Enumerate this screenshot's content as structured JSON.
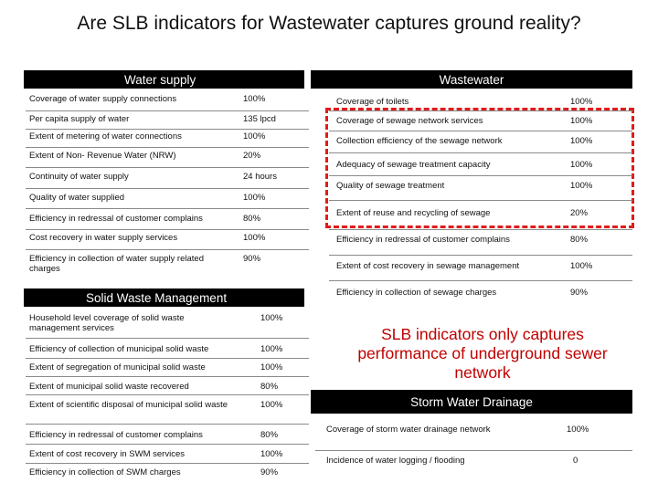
{
  "title": "Are SLB indicators for Wastewater captures ground reality?",
  "water_supply": {
    "header": "Water supply",
    "rows": [
      {
        "label": "Coverage of water supply connections",
        "value": "100%"
      },
      {
        "label": "Per capita supply of water",
        "value": "135 lpcd"
      },
      {
        "label": "Extent of metering of water connections",
        "value": "100%"
      },
      {
        "label": "Extent of Non- Revenue Water (NRW)",
        "value": "20%"
      },
      {
        "label": "Continuity of water supply",
        "value": "24 hours"
      },
      {
        "label": "Quality of water supplied",
        "value": "100%"
      },
      {
        "label": "Efficiency in redressal of customer complains",
        "value": "80%"
      },
      {
        "label": "Cost recovery in water supply services",
        "value": "100%"
      },
      {
        "label": "Efficiency in collection of water supply related charges",
        "value": "90%"
      }
    ]
  },
  "wastewater": {
    "header": "Wastewater",
    "rows": [
      {
        "label": "Coverage of toilets",
        "value": "100%"
      },
      {
        "label": "Coverage of sewage network services",
        "value": "100%"
      },
      {
        "label": "Collection efficiency of the sewage network",
        "value": "100%"
      },
      {
        "label": "Adequacy of sewage treatment capacity",
        "value": "100%"
      },
      {
        "label": "Quality of sewage treatment",
        "value": "100%"
      },
      {
        "label": "Extent of reuse and recycling of sewage",
        "value": "20%"
      },
      {
        "label": "Efficiency in redressal of customer complains",
        "value": "80%"
      },
      {
        "label": "Extent of cost recovery in sewage management",
        "value": "100%"
      },
      {
        "label": "Efficiency in collection of sewage charges",
        "value": "90%"
      }
    ]
  },
  "solid_waste": {
    "header": "Solid Waste Management",
    "rows": [
      {
        "label": "Household level coverage of solid waste management services",
        "value": "100%"
      },
      {
        "label": "Efficiency of collection of municipal solid waste",
        "value": "100%"
      },
      {
        "label": "Extent of segregation of municipal solid waste",
        "value": "100%"
      },
      {
        "label": "Extent of municipal solid waste recovered",
        "value": "80%"
      },
      {
        "label": "Extent of scientific disposal of municipal solid waste",
        "value": "100%"
      },
      {
        "label": "Efficiency in redressal of customer complains",
        "value": "80%"
      },
      {
        "label": "Extent of cost recovery in SWM services",
        "value": "100%"
      },
      {
        "label": "Efficiency in collection of SWM charges",
        "value": "90%"
      }
    ]
  },
  "note": "SLB indicators only captures performance of underground sewer network",
  "storm_water": {
    "header": "Storm Water Drainage",
    "rows": [
      {
        "label": "Coverage of storm water drainage network",
        "value": "100%"
      },
      {
        "label": "Incidence of water logging / flooding",
        "value": "0"
      }
    ]
  },
  "colors": {
    "header_bg": "#000000",
    "highlight_dash": "#e11b1b",
    "note_text": "#c00000"
  }
}
